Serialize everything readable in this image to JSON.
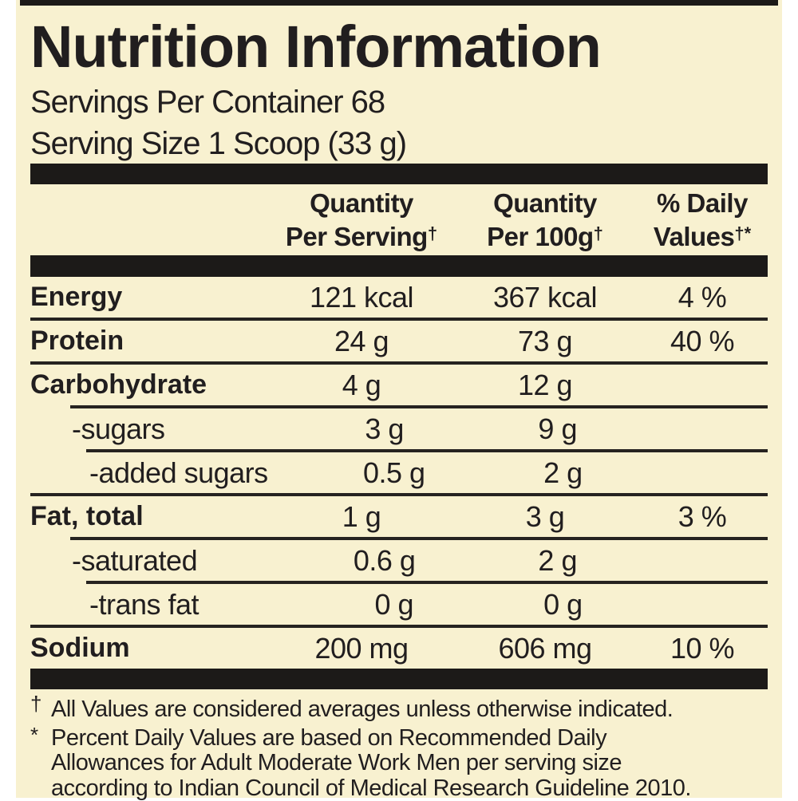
{
  "label": {
    "title": "Nutrition Information",
    "servings_per_container": "Servings Per Container 68",
    "serving_size": "Serving Size 1 Scoop (33 g)",
    "colors": {
      "background": "#f8f1d0",
      "bars": "#1c1a18",
      "text": "#211e1f",
      "page_margin": "#ffffff"
    },
    "columns": [
      {
        "line1": "Quantity",
        "line2": "Per Serving",
        "sup": "†"
      },
      {
        "line1": "Quantity",
        "line2": "Per 100g",
        "sup": "†"
      },
      {
        "line1": "% Daily",
        "line2": "Values",
        "sup": "†*"
      }
    ],
    "rows": [
      {
        "name": "Energy",
        "bold": true,
        "indent": 0,
        "per_serving": "121 kcal",
        "per_100g": "367 kcal",
        "daily_value": "4 %"
      },
      {
        "name": "Protein",
        "bold": true,
        "indent": 0,
        "per_serving": "24 g",
        "per_100g": "73 g",
        "daily_value": "40 %"
      },
      {
        "name": "Carbohydrate",
        "bold": true,
        "indent": 0,
        "per_serving": "4 g",
        "per_100g": "12 g",
        "daily_value": ""
      },
      {
        "name": "-sugars",
        "bold": false,
        "indent": 1,
        "per_serving": "3 g",
        "per_100g": "9 g",
        "daily_value": ""
      },
      {
        "name": "-added sugars",
        "bold": false,
        "indent": 2,
        "per_serving": "0.5 g",
        "per_100g": "2 g",
        "daily_value": ""
      },
      {
        "name": "Fat, total",
        "bold": true,
        "indent": 0,
        "per_serving": "1 g",
        "per_100g": "3 g",
        "daily_value": "3 %"
      },
      {
        "name": "-saturated",
        "bold": false,
        "indent": 1,
        "per_serving": "0.6 g",
        "per_100g": "2 g",
        "daily_value": ""
      },
      {
        "name": "-trans fat",
        "bold": false,
        "indent": 2,
        "per_serving": "0 g",
        "per_100g": "0 g",
        "daily_value": ""
      },
      {
        "name": "Sodium",
        "bold": true,
        "indent": 0,
        "per_serving": "200 mg",
        "per_100g": "606 mg",
        "daily_value": "10 %"
      }
    ],
    "footnotes": [
      {
        "marker": "†",
        "lines": [
          "All Values are considered averages unless otherwise indicated."
        ]
      },
      {
        "marker": "*",
        "lines": [
          "Percent Daily Values are based on Recommended Daily",
          "Allowances for Adult Moderate Work Men per serving size",
          "according to Indian Council of Medical Research Guideline 2010."
        ]
      }
    ]
  }
}
